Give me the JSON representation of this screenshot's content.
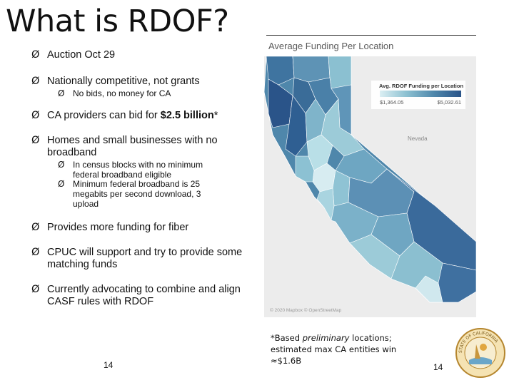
{
  "slide": {
    "title": "What is RDOF?",
    "bullets": [
      {
        "level": 1,
        "text": "Auction Oct 29"
      },
      {
        "level": 1,
        "text": "Nationally competitive, not grants"
      },
      {
        "level": 2,
        "text": "No bids, no money for CA"
      },
      {
        "level": 1,
        "text_before": "CA providers can bid for ",
        "text_bold": "$2.5 billion",
        "text_after": "*"
      },
      {
        "level": 1,
        "text": "Homes and small businesses with no broadband"
      },
      {
        "level": 2,
        "text": "In census blocks with no minimum federal broadband eligible"
      },
      {
        "level": 2,
        "text": "Minimum federal broadband is 25 megabits per second download, 3 upload"
      },
      {
        "level": 1,
        "text": "Provides more funding for fiber"
      },
      {
        "level": 1,
        "text": "CPUC will support and try to provide some matching funds"
      },
      {
        "level": 1,
        "text": "Currently advocating to combine and align CASF rules with RDOF"
      }
    ],
    "bullet_glyph": "Ø",
    "page_number_left": "14",
    "page_number_right": "14",
    "footnote": {
      "pre": "*Based ",
      "italic": "preliminary",
      "post": " locations; estimated max CA entities win ≈$1.6B"
    }
  },
  "map": {
    "title": "Average Funding Per Location",
    "legend_title": "Avg. RDOF Funding per Location",
    "legend_min": "$1,364.05",
    "legend_max": "$5,032.61",
    "region_label": "Nevada",
    "credit": "© 2020 Mapbox © OpenStreetMap",
    "colors": {
      "light": "#dceff3",
      "mid": "#8bc0d1",
      "dark": "#4f87ab",
      "darkest": "#2a5489",
      "nevada": "#ececec"
    }
  },
  "seal": {
    "name": "California Public Utilities Commission seal",
    "text": "STATE OF CALIFORNIA"
  }
}
